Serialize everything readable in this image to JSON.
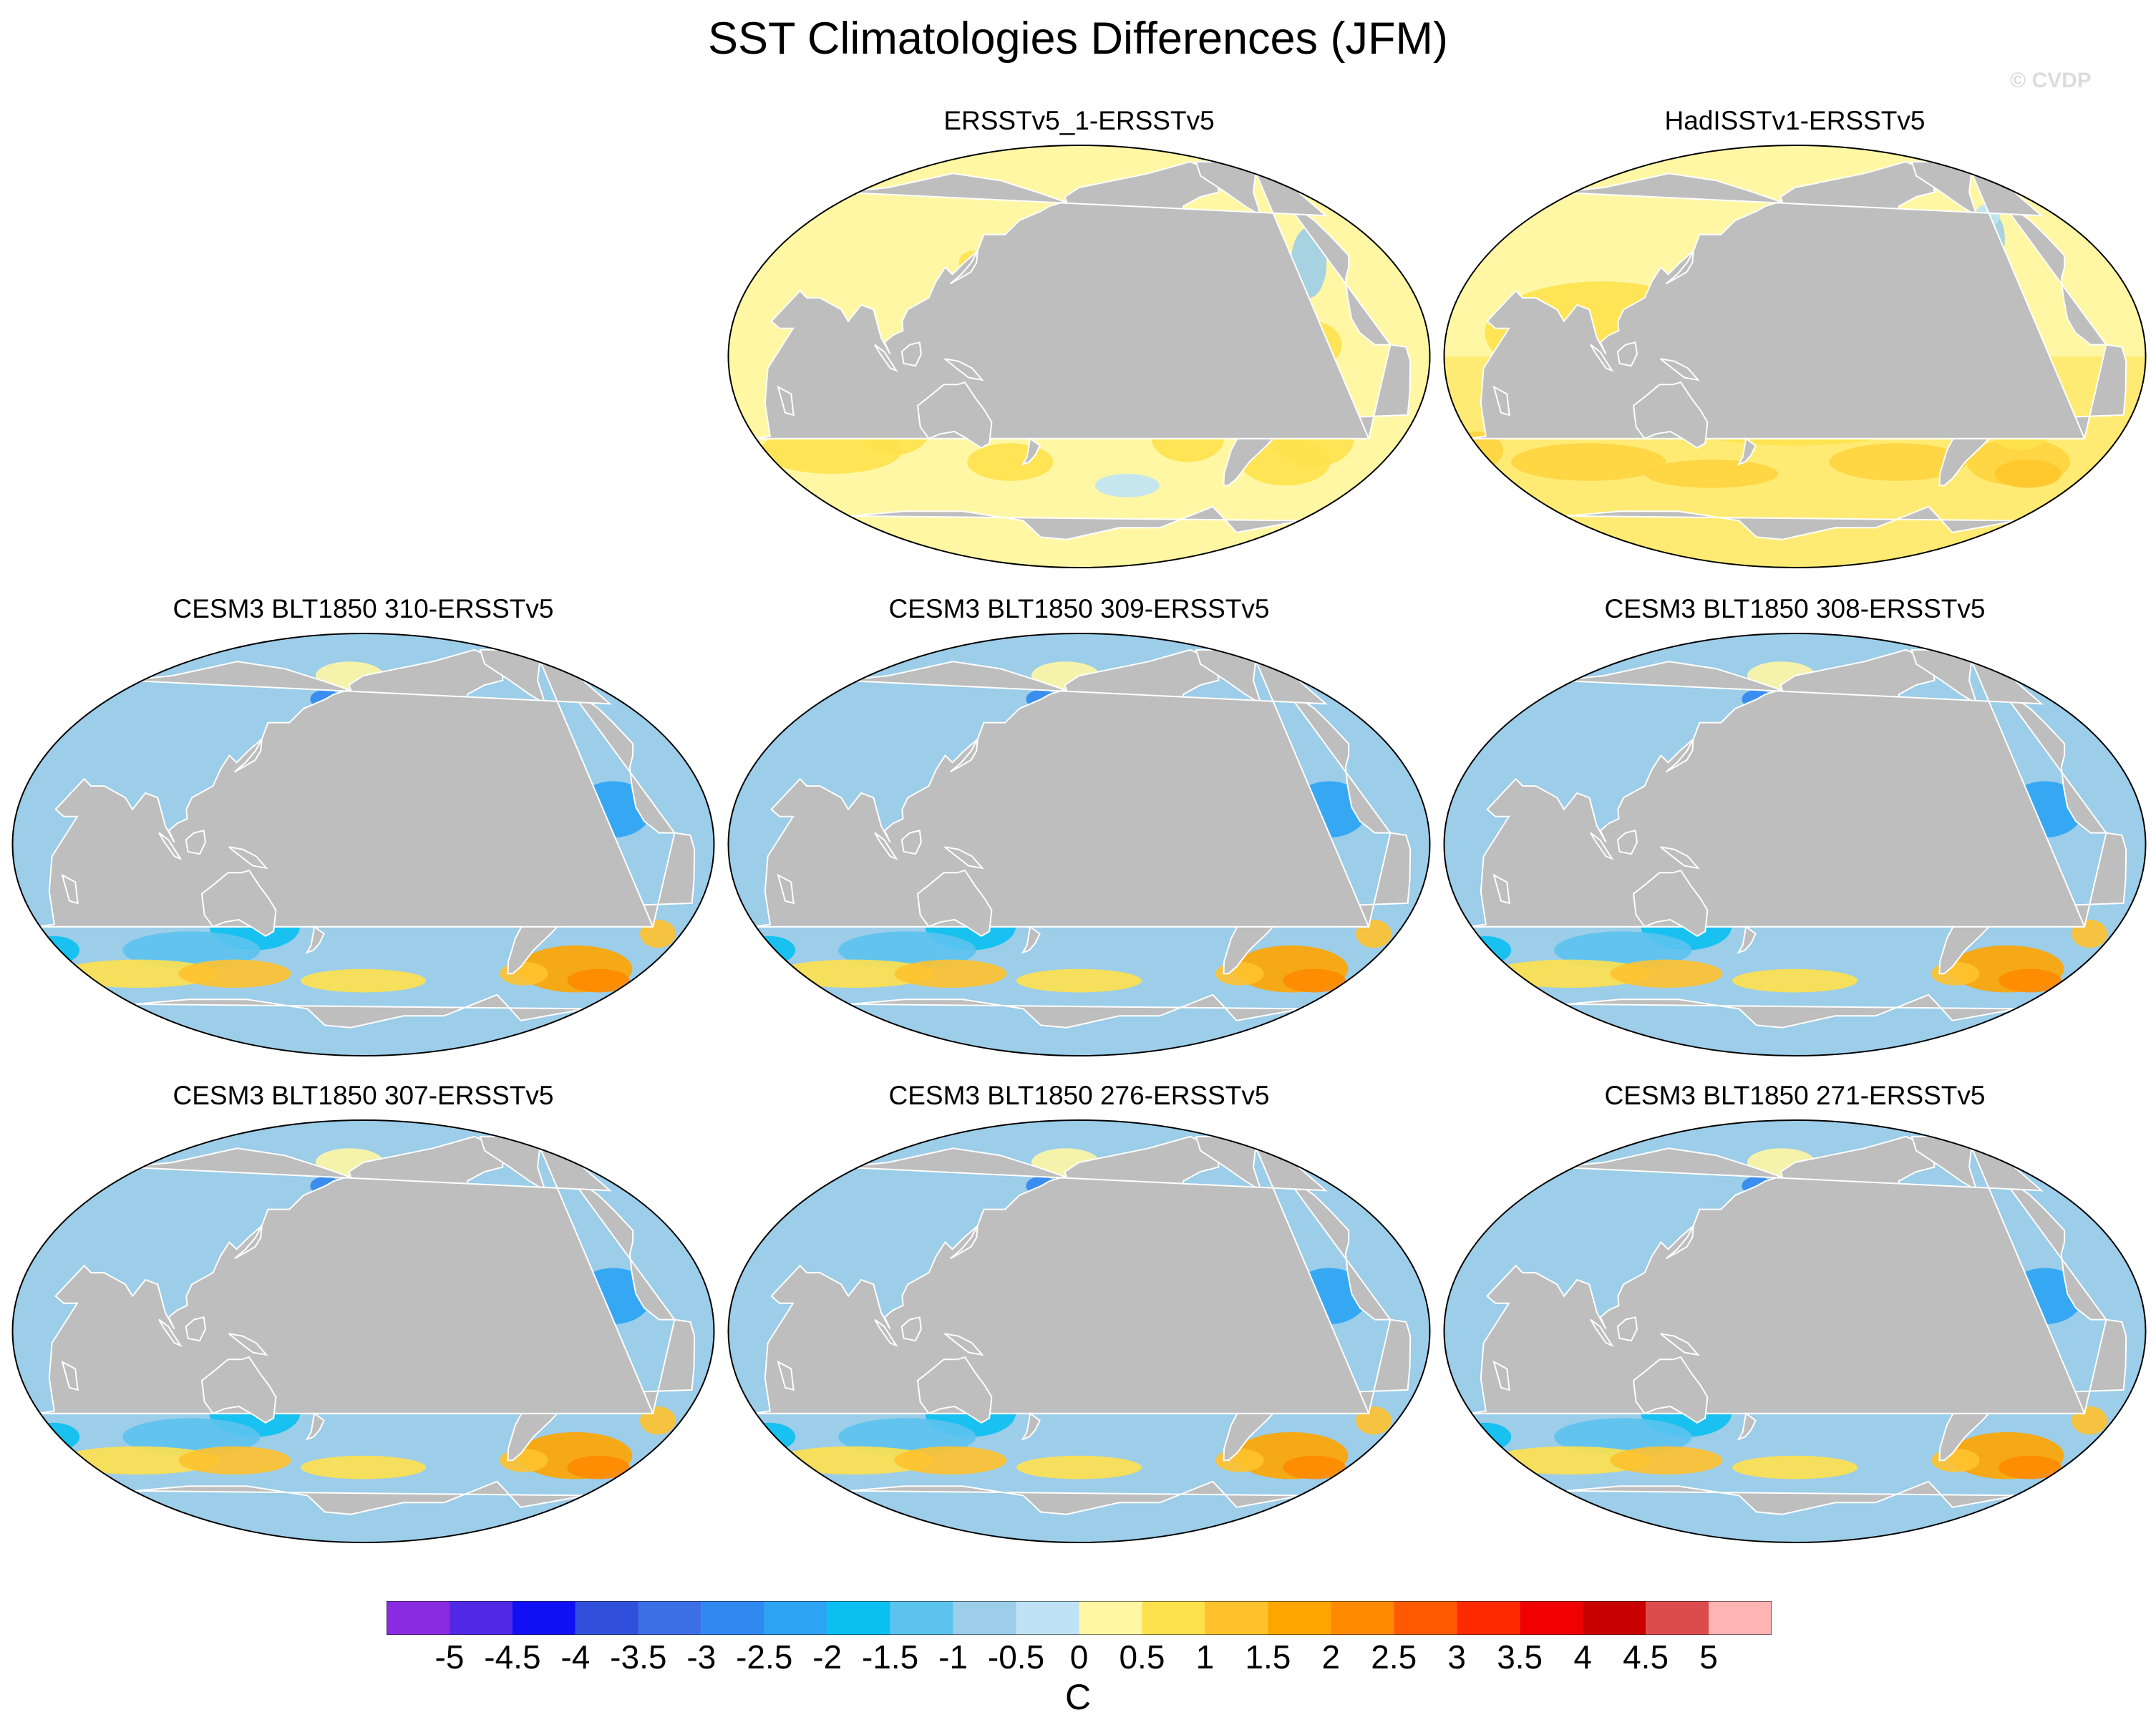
{
  "title": "SST Climatologies Differences (JFM)",
  "copyright": "© CVDP",
  "projection": "Robinson, Pacific-centered",
  "colors": {
    "land": "#bebebe",
    "coast": "#ffffff",
    "outline": "#000000"
  },
  "panels": [
    {
      "title": "ERSSTv5_1-ERSSTv5",
      "pattern": "obs_small_warm_bias"
    },
    {
      "title": "HadISSTv1-ERSSTv5",
      "pattern": "obs_warm_bias"
    },
    {
      "title": "CESM3 BLT1850 310-ERSSTv5",
      "pattern": "model_cold_bias_warm_southern_ocean"
    },
    {
      "title": "CESM3 BLT1850 309-ERSSTv5",
      "pattern": "model_cold_bias_warm_southern_ocean"
    },
    {
      "title": "CESM3 BLT1850 308-ERSSTv5",
      "pattern": "model_cold_bias_warm_southern_ocean"
    },
    {
      "title": "CESM3 BLT1850 307-ERSSTv5",
      "pattern": "model_cold_bias_warm_southern_ocean"
    },
    {
      "title": "CESM3 BLT1850 276-ERSSTv5",
      "pattern": "model_cold_bias_warm_southern_ocean"
    },
    {
      "title": "CESM3 BLT1850 271-ERSSTv5",
      "pattern": "model_cold_bias_warm_southern_ocean"
    }
  ],
  "colorbar": {
    "unit": "C",
    "labels": [
      "-5",
      "-4.5",
      "-4",
      "-3.5",
      "-3",
      "-2.5",
      "-2",
      "-1.5",
      "-1",
      "-0.5",
      "0",
      "0.5",
      "1",
      "1.5",
      "2",
      "2.5",
      "3",
      "3.5",
      "4",
      "4.5",
      "5"
    ],
    "colors": [
      "#8a2be2",
      "#5128e6",
      "#1010f5",
      "#3050dc",
      "#3c6ee6",
      "#2f87f0",
      "#2ba4f4",
      "#0ac0f0",
      "#5cc3ee",
      "#9ccde9",
      "#bfe3f5",
      "#fff7a4",
      "#ffe14d",
      "#ffc22d",
      "#ffa500",
      "#ff8a00",
      "#ff5a00",
      "#ff2a00",
      "#f00000",
      "#c80000",
      "#dd4c4c",
      "#ffb4b4"
    ]
  }
}
